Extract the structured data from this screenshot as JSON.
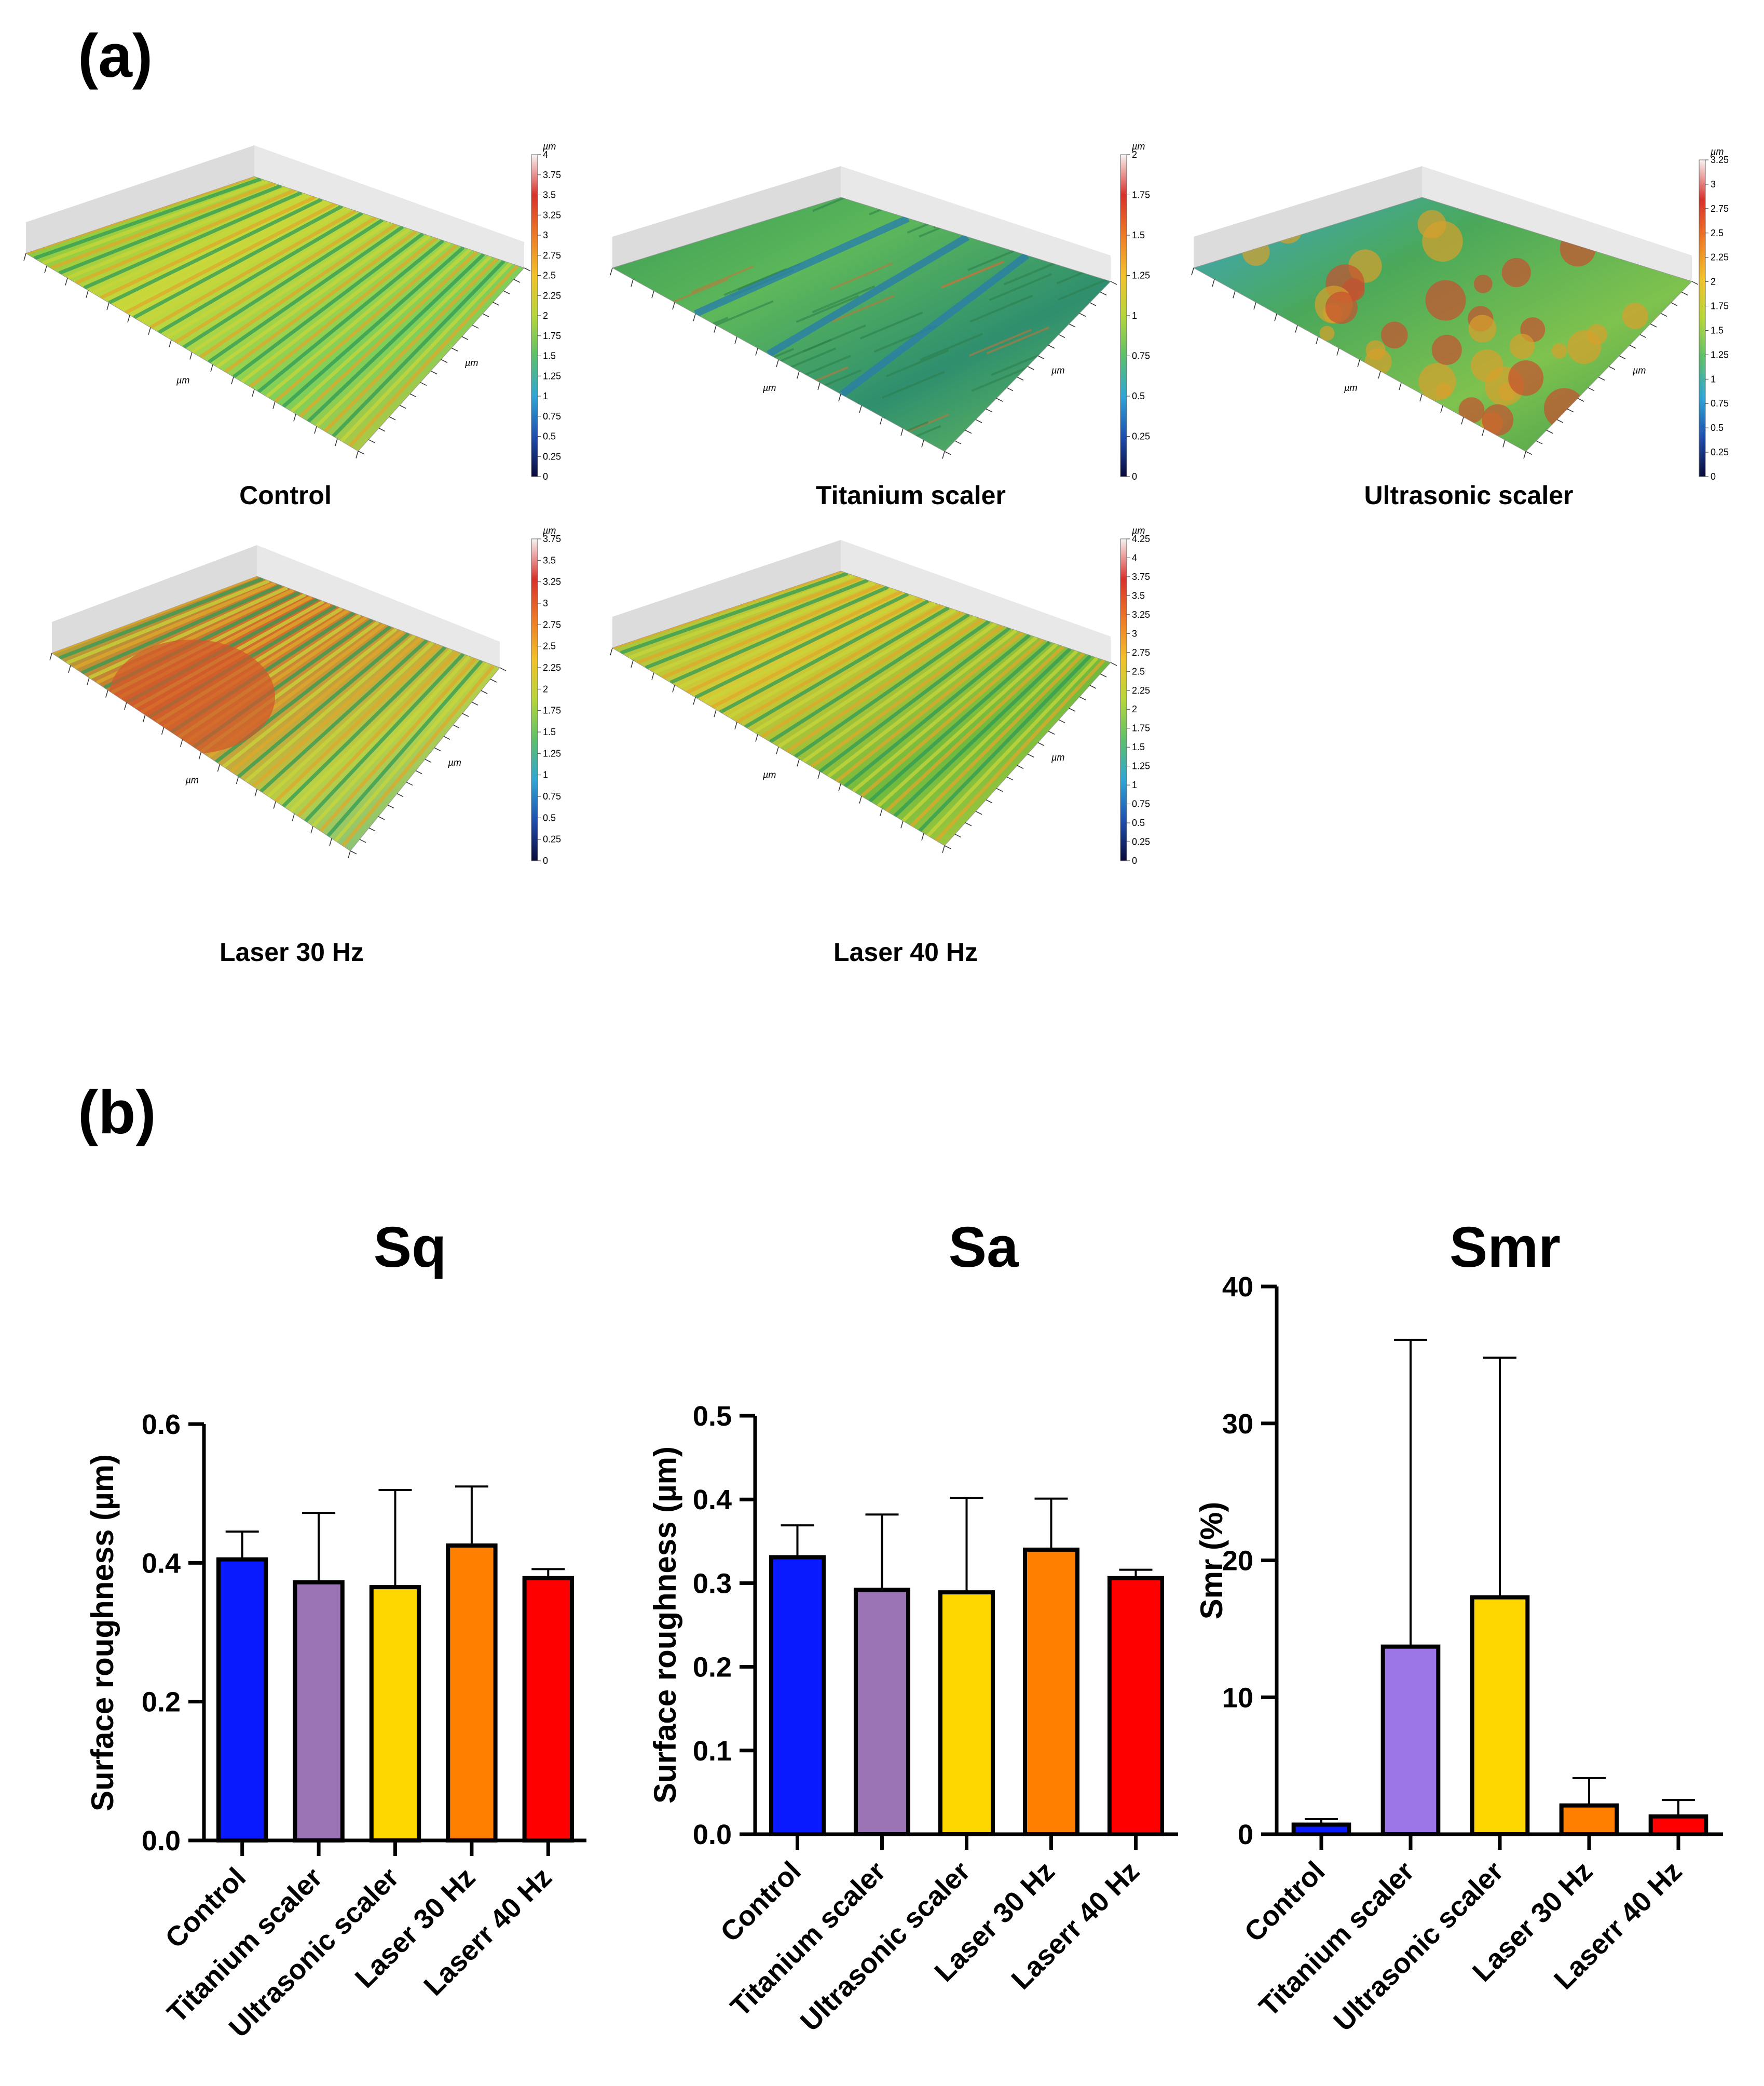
{
  "panel_a": {
    "label": "(a)",
    "maps": [
      {
        "caption": "Control",
        "scale_unit": "µm",
        "scale_ticks": [
          "0",
          "0.25",
          "0.5",
          "0.75",
          "1",
          "1.25",
          "1.5",
          "1.75",
          "2",
          "2.25",
          "2.5",
          "2.75",
          "3",
          "3.25",
          "3.5",
          "3.75",
          "4"
        ],
        "axis_unit": "µm"
      },
      {
        "caption": "Titanium scaler",
        "scale_unit": "µm",
        "scale_ticks": [
          "0",
          "0.25",
          "0.5",
          "0.75",
          "1",
          "1.25",
          "1.5",
          "1.75",
          "2"
        ],
        "axis_unit": "µm"
      },
      {
        "caption": "Ultrasonic scaler",
        "scale_unit": "µm",
        "scale_ticks": [
          "0",
          "0.25",
          "0.5",
          "0.75",
          "1",
          "1.25",
          "1.5",
          "1.75",
          "2",
          "2.25",
          "2.5",
          "2.75",
          "3",
          "3.25"
        ],
        "axis_unit": "µm"
      },
      {
        "caption": "Laser 30 Hz",
        "scale_unit": "µm",
        "scale_ticks": [
          "0",
          "0.25",
          "0.5",
          "0.75",
          "1",
          "1.25",
          "1.5",
          "1.75",
          "2",
          "2.25",
          "2.5",
          "2.75",
          "3",
          "3.25",
          "3.5",
          "3.75"
        ],
        "axis_unit": "µm"
      },
      {
        "caption": "Laser 40 Hz",
        "scale_unit": "µm",
        "scale_ticks": [
          "0",
          "0.25",
          "0.5",
          "0.75",
          "1",
          "1.25",
          "1.5",
          "1.75",
          "2",
          "2.25",
          "2.5",
          "2.75",
          "3",
          "3.25",
          "3.5",
          "3.75",
          "4",
          "4.25"
        ],
        "axis_unit": "µm"
      }
    ]
  },
  "panel_b": {
    "label": "(b)"
  },
  "colors": {
    "control": "#0a1aff",
    "titanium_sq": "#9b74b6",
    "titanium_smr": "#9b74e6",
    "ultrasonic": "#ffd700",
    "laser30": "#ff7f00",
    "laser40": "#ff0000"
  },
  "chart_data": [
    {
      "type": "bar",
      "title": "Sq",
      "ylabel": "Surface roughness (µm)",
      "xlabel": "",
      "categories": [
        "Control",
        "Titanium scaler",
        "Ultrasonic scaler",
        "Laser 30 Hz",
        "Laserr 40 Hz"
      ],
      "values": [
        0.405,
        0.372,
        0.365,
        0.425,
        0.378
      ],
      "errors": [
        0.04,
        0.1,
        0.14,
        0.085,
        0.013
      ],
      "ylim": [
        0,
        0.6
      ],
      "yticks": [
        "0.0",
        "0.2",
        "0.4",
        "0.6"
      ],
      "ytick_values": [
        0,
        0.2,
        0.4,
        0.6
      ]
    },
    {
      "type": "bar",
      "title": "Sa",
      "ylabel": "Surface roughness (µm)",
      "xlabel": "",
      "categories": [
        "Control",
        "Titanium scaler",
        "Ultrasonic scaler",
        "Laser 30 Hz",
        "Laserr 40 Hz"
      ],
      "values": [
        0.331,
        0.292,
        0.289,
        0.34,
        0.306
      ],
      "errors": [
        0.038,
        0.09,
        0.113,
        0.061,
        0.01
      ],
      "ylim": [
        0,
        0.5
      ],
      "yticks": [
        "0.0",
        "0.1",
        "0.2",
        "0.3",
        "0.4",
        "0.5"
      ],
      "ytick_values": [
        0,
        0.1,
        0.2,
        0.3,
        0.4,
        0.5
      ]
    },
    {
      "type": "bar",
      "title": "Smr",
      "ylabel": "Smr (%)",
      "xlabel": "",
      "categories": [
        "Control",
        "Titanium scaler",
        "Ultrasonic scaler",
        "Laser 30 Hz",
        "Laserr 40 Hz"
      ],
      "values": [
        0.7,
        13.7,
        17.3,
        2.1,
        1.3
      ],
      "errors": [
        0.4,
        22.4,
        17.5,
        2.0,
        1.2
      ],
      "ylim": [
        0,
        40
      ],
      "yticks": [
        "0",
        "10",
        "20",
        "30",
        "40"
      ],
      "ytick_values": [
        0,
        10,
        20,
        30,
        40
      ]
    }
  ]
}
